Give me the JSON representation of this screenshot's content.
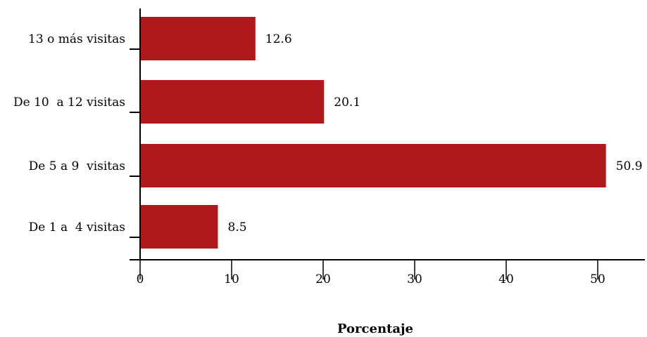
{
  "chart_data": {
    "type": "bar",
    "orientation": "horizontal",
    "categories": [
      "13 o más visitas",
      "De 10  a 12 visitas",
      "De 5 a 9  visitas",
      "De 1 a  4 visitas"
    ],
    "values": [
      12.6,
      20.1,
      50.9,
      8.5
    ],
    "value_labels": [
      "12.6",
      "20.1",
      "50.9",
      "8.5"
    ],
    "xlabel": "Porcentaje",
    "xlim": [
      0,
      55
    ],
    "xticks": [
      0,
      10,
      20,
      30,
      40,
      50
    ],
    "bar_color": "#B0191C",
    "grid": false,
    "legend": "none"
  }
}
